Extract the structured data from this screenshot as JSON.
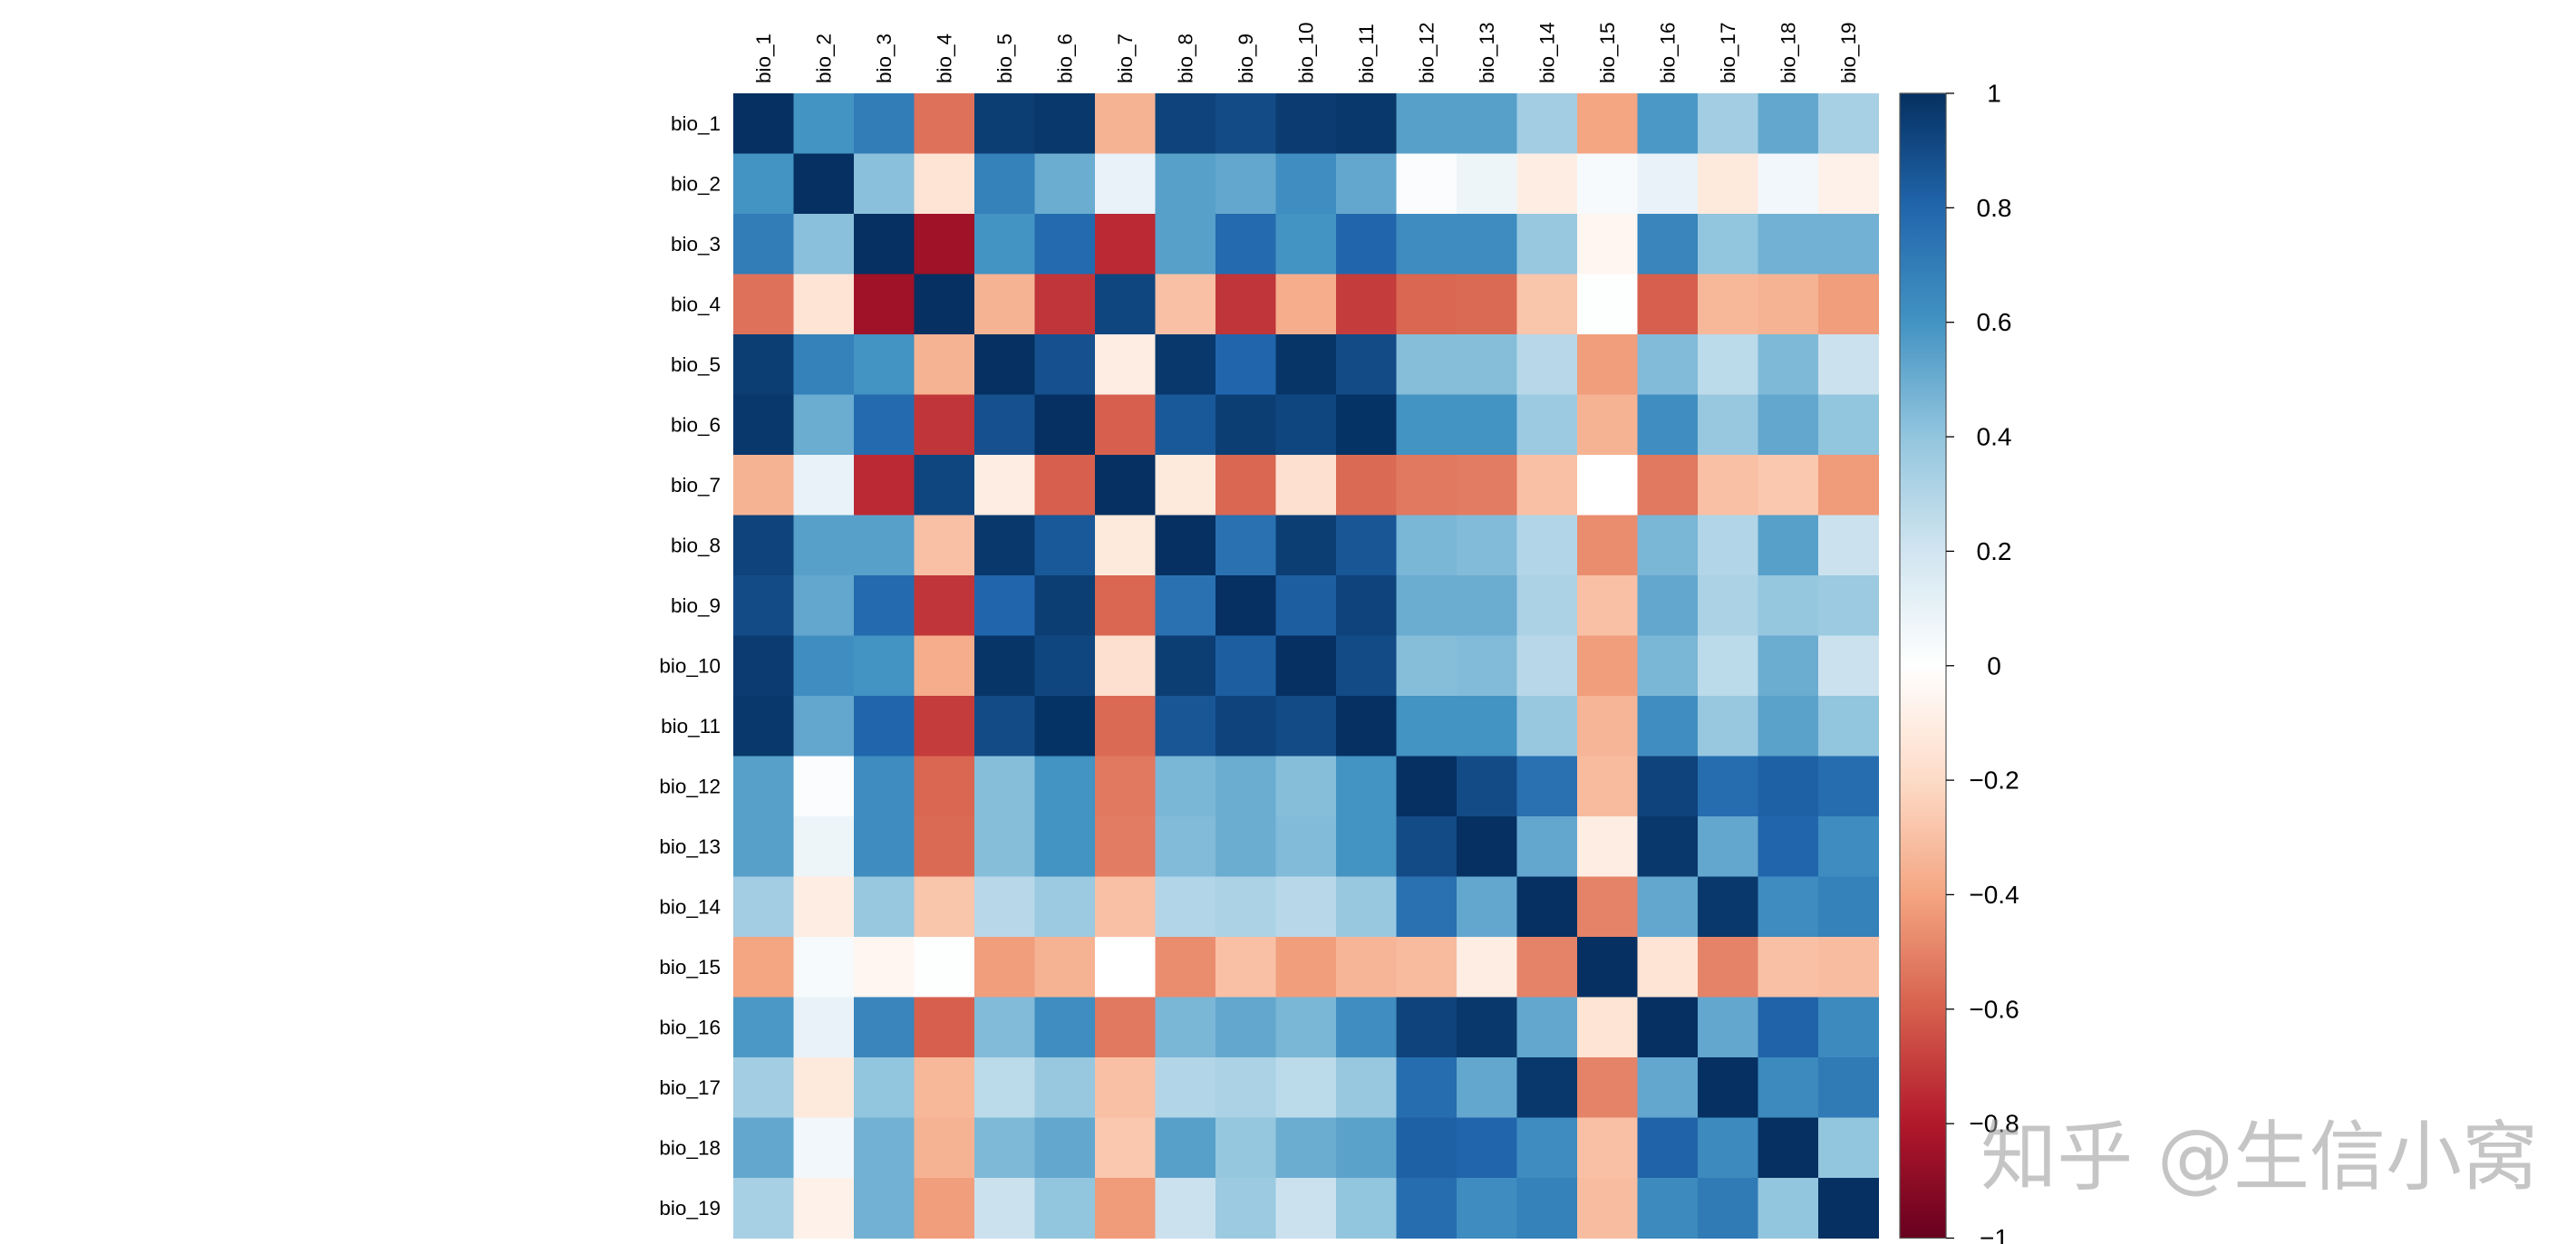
{
  "chart_data": {
    "type": "heatmap",
    "row_labels": [
      "bio_1",
      "bio_2",
      "bio_3",
      "bio_4",
      "bio_5",
      "bio_6",
      "bio_7",
      "bio_8",
      "bio_9",
      "bio_10",
      "bio_11",
      "bio_12",
      "bio_13",
      "bio_14",
      "bio_15",
      "bio_16",
      "bio_17",
      "bio_18",
      "bio_19"
    ],
    "col_labels": [
      "bio_1",
      "bio_2",
      "bio_3",
      "bio_4",
      "bio_5",
      "bio_6",
      "bio_7",
      "bio_8",
      "bio_9",
      "bio_10",
      "bio_11",
      "bio_12",
      "bio_13",
      "bio_14",
      "bio_15",
      "bio_16",
      "bio_17",
      "bio_18",
      "bio_19"
    ],
    "value_range": [
      -1,
      1
    ],
    "values": [
      [
        1,
        0.6,
        0.7,
        -0.55,
        0.95,
        0.97,
        -0.35,
        0.93,
        0.9,
        0.96,
        0.97,
        0.55,
        0.55,
        0.35,
        -0.4,
        0.58,
        0.35,
        0.52,
        0.33
      ],
      [
        0.6,
        1,
        0.42,
        -0.15,
        0.68,
        0.5,
        0.1,
        0.55,
        0.52,
        0.62,
        0.52,
        0.02,
        0.08,
        -0.1,
        0.04,
        0.1,
        -0.12,
        0.06,
        -0.08
      ],
      [
        0.7,
        0.42,
        1,
        -0.85,
        0.6,
        0.78,
        -0.75,
        0.55,
        0.78,
        0.6,
        0.8,
        0.63,
        0.63,
        0.38,
        -0.05,
        0.66,
        0.4,
        0.48,
        0.48
      ],
      [
        -0.55,
        -0.15,
        -0.85,
        1,
        -0.35,
        -0.72,
        0.92,
        -0.3,
        -0.72,
        -0.37,
        -0.7,
        -0.58,
        -0.57,
        -0.28,
        0.01,
        -0.6,
        -0.33,
        -0.35,
        -0.42
      ],
      [
        0.95,
        0.68,
        0.6,
        -0.35,
        1,
        0.88,
        -0.1,
        0.97,
        0.8,
        0.98,
        0.9,
        0.43,
        0.43,
        0.28,
        -0.42,
        0.44,
        0.27,
        0.45,
        0.22
      ],
      [
        0.97,
        0.5,
        0.78,
        -0.72,
        0.88,
        1,
        -0.6,
        0.85,
        0.95,
        0.92,
        0.99,
        0.6,
        0.6,
        0.37,
        -0.35,
        0.62,
        0.38,
        0.52,
        0.4
      ],
      [
        -0.35,
        0.1,
        -0.75,
        0.92,
        -0.1,
        -0.6,
        1,
        -0.12,
        -0.58,
        -0.17,
        -0.57,
        -0.53,
        -0.52,
        -0.3,
        0.0,
        -0.53,
        -0.3,
        -0.27,
        -0.43
      ],
      [
        0.93,
        0.55,
        0.55,
        -0.3,
        0.97,
        0.85,
        -0.12,
        1,
        0.75,
        0.95,
        0.86,
        0.46,
        0.44,
        0.3,
        -0.47,
        0.46,
        0.3,
        0.55,
        0.22
      ],
      [
        0.9,
        0.52,
        0.78,
        -0.72,
        0.8,
        0.95,
        -0.58,
        0.75,
        1,
        0.83,
        0.93,
        0.5,
        0.5,
        0.32,
        -0.3,
        0.52,
        0.32,
        0.39,
        0.37
      ],
      [
        0.96,
        0.62,
        0.6,
        -0.37,
        0.98,
        0.92,
        -0.17,
        0.95,
        0.83,
        1,
        0.9,
        0.43,
        0.44,
        0.28,
        -0.42,
        0.46,
        0.27,
        0.5,
        0.22
      ],
      [
        0.97,
        0.52,
        0.8,
        -0.7,
        0.9,
        0.99,
        -0.57,
        0.86,
        0.93,
        0.9,
        1,
        0.6,
        0.6,
        0.38,
        -0.34,
        0.62,
        0.38,
        0.54,
        0.4
      ],
      [
        0.55,
        0.02,
        0.63,
        -0.58,
        0.43,
        0.6,
        -0.53,
        0.46,
        0.5,
        0.43,
        0.6,
        1,
        0.9,
        0.75,
        -0.32,
        0.93,
        0.77,
        0.82,
        0.77
      ],
      [
        0.55,
        0.08,
        0.63,
        -0.57,
        0.43,
        0.6,
        -0.52,
        0.44,
        0.5,
        0.44,
        0.6,
        0.9,
        1,
        0.52,
        -0.1,
        0.97,
        0.52,
        0.8,
        0.63
      ],
      [
        0.35,
        -0.1,
        0.38,
        -0.28,
        0.28,
        0.37,
        -0.3,
        0.3,
        0.32,
        0.28,
        0.38,
        0.75,
        0.52,
        1,
        -0.5,
        0.52,
        0.97,
        0.63,
        0.68
      ],
      [
        -0.4,
        0.04,
        -0.05,
        0.01,
        -0.42,
        -0.35,
        0.0,
        -0.47,
        -0.3,
        -0.42,
        -0.34,
        -0.32,
        -0.1,
        -0.5,
        1,
        -0.15,
        -0.5,
        -0.3,
        -0.31
      ],
      [
        0.58,
        0.1,
        0.66,
        -0.6,
        0.44,
        0.62,
        -0.53,
        0.46,
        0.52,
        0.46,
        0.62,
        0.93,
        0.97,
        0.52,
        -0.15,
        1,
        0.52,
        0.81,
        0.64
      ],
      [
        0.35,
        -0.12,
        0.4,
        -0.33,
        0.27,
        0.38,
        -0.3,
        0.3,
        0.32,
        0.27,
        0.38,
        0.77,
        0.52,
        0.97,
        -0.5,
        0.52,
        1,
        0.64,
        0.71
      ],
      [
        0.52,
        0.06,
        0.48,
        -0.35,
        0.45,
        0.52,
        -0.27,
        0.55,
        0.39,
        0.5,
        0.54,
        0.82,
        0.8,
        0.63,
        -0.3,
        0.81,
        0.64,
        1,
        0.4
      ],
      [
        0.33,
        -0.08,
        0.48,
        -0.42,
        0.22,
        0.4,
        -0.43,
        0.22,
        0.37,
        0.22,
        0.4,
        0.77,
        0.63,
        0.68,
        -0.31,
        0.64,
        0.71,
        0.4,
        1
      ]
    ],
    "colorscale": [
      "#67001F",
      "#B2182B",
      "#D6604D",
      "#F4A582",
      "#FDDBC7",
      "#FFFFFF",
      "#D1E5F0",
      "#92C5DE",
      "#4393C3",
      "#2166AC",
      "#053061"
    ],
    "colorbar": {
      "tick_values": [
        1,
        0.8,
        0.6,
        0.4,
        0.2,
        0,
        -0.2,
        -0.4,
        -0.6,
        -0.8,
        -1
      ],
      "tick_labels": [
        "1",
        "0.8",
        "0.6",
        "0.4",
        "0.2",
        "0",
        "−0.2",
        "−0.4",
        "−0.6",
        "−0.8",
        "−1"
      ]
    }
  },
  "watermark": "知乎 @生信小窝"
}
